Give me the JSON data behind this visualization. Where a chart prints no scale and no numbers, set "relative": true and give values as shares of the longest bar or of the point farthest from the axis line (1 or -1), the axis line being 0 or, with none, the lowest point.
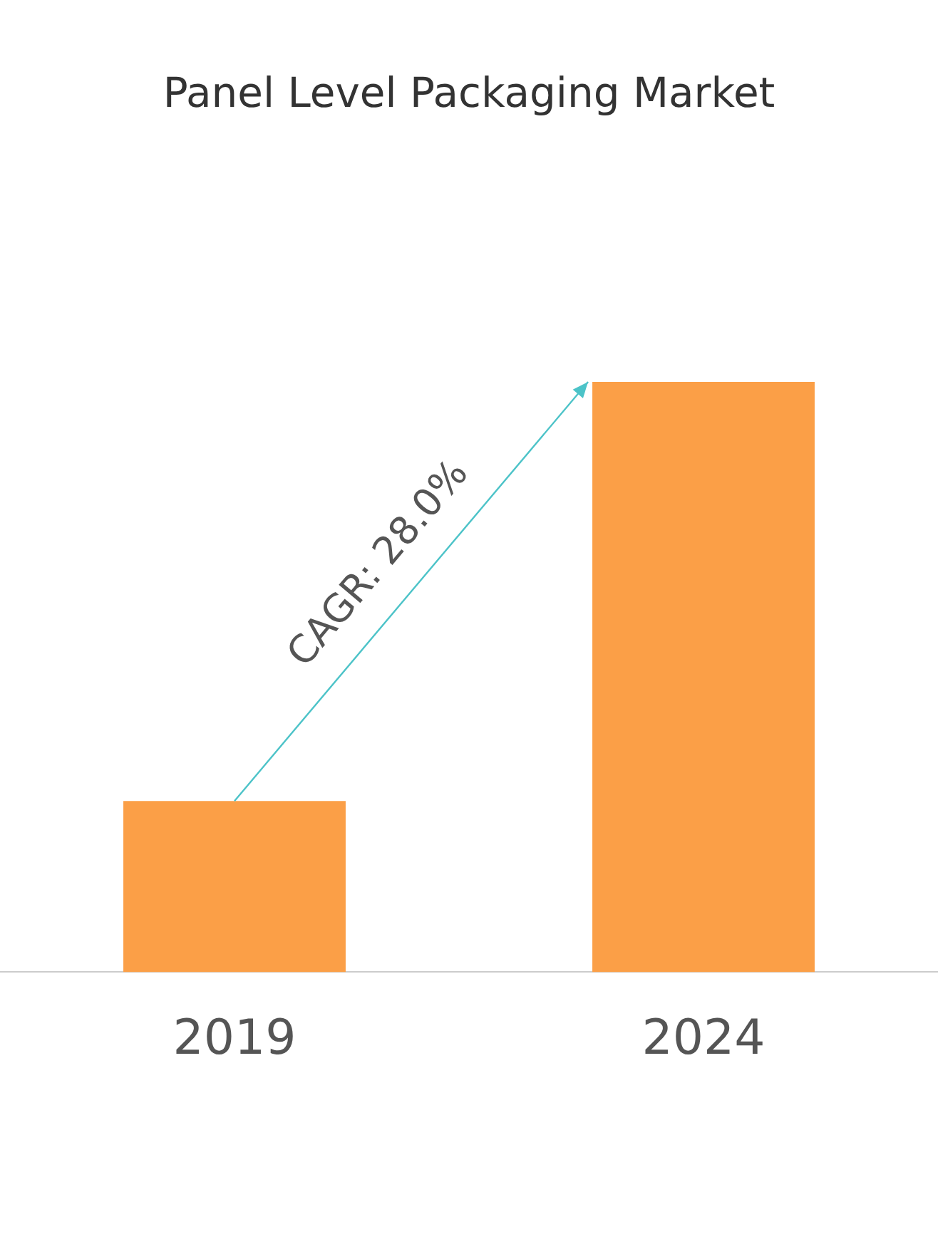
{
  "chart_data": {
    "type": "bar",
    "title": "Panel Level Packaging Market",
    "categories": [
      "2019",
      "2024"
    ],
    "values": [
      0.29,
      1
    ],
    "color": "#fb9f47",
    "relative": true,
    "legend": false,
    "annotations": [
      "CAGR: 28.0%"
    ]
  }
}
